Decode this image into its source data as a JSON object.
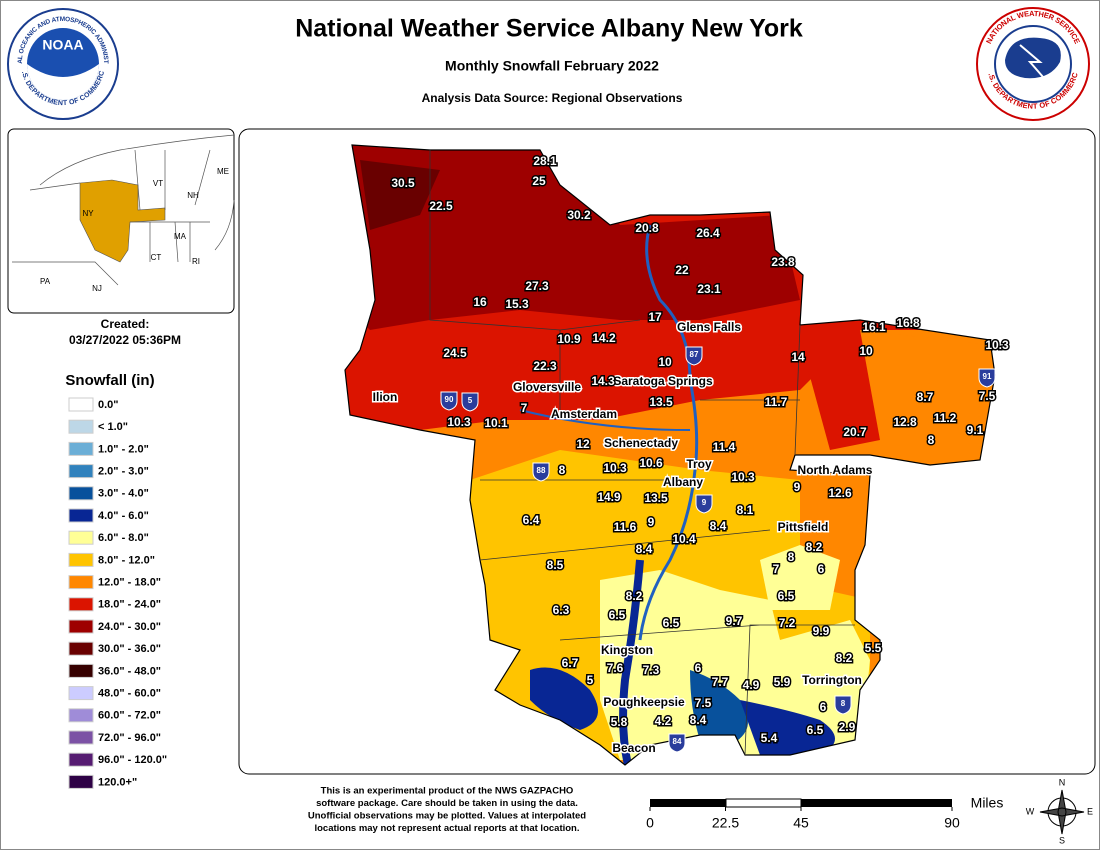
{
  "header": {
    "title": "National Weather Service Albany New York",
    "subtitle": "Monthly Snowfall February 2022",
    "source": "Analysis Data Source: Regional Observations"
  },
  "logos": {
    "noaa": "NOAA",
    "noaa_ring_top": "NATIONAL OCEANIC AND ATMOSPHERIC ADMINISTRATION",
    "noaa_ring_bottom": "U.S. DEPARTMENT OF COMMERCE",
    "nws_ring_top": "NATIONAL WEATHER SERVICE",
    "nws_ring_bottom": "U.S. DEPARTMENT OF COMMERCE"
  },
  "inset": {
    "states": [
      "ME",
      "VT",
      "NH",
      "NY",
      "MA",
      "CT",
      "RI",
      "PA",
      "NJ"
    ],
    "created_label": "Created:",
    "created": "03/27/2022 05:36PM"
  },
  "legend": {
    "title": "Snowfall (in)",
    "items": [
      {
        "label": "0.0\"",
        "color": "#ffffff"
      },
      {
        "label": "< 1.0\"",
        "color": "#bdd7e7"
      },
      {
        "label": "1.0\" - 2.0\"",
        "color": "#6baed6"
      },
      {
        "label": "2.0\" - 3.0\"",
        "color": "#3182bd"
      },
      {
        "label": "3.0\" - 4.0\"",
        "color": "#08519c"
      },
      {
        "label": "4.0\" - 6.0\"",
        "color": "#082694"
      },
      {
        "label": "6.0\" - 8.0\"",
        "color": "#ffff96"
      },
      {
        "label": "8.0\" - 12.0\"",
        "color": "#ffc400"
      },
      {
        "label": "12.0\" - 18.0\"",
        "color": "#ff8700"
      },
      {
        "label": "18.0\" - 24.0\"",
        "color": "#db1400"
      },
      {
        "label": "24.0\" - 30.0\"",
        "color": "#9e0000"
      },
      {
        "label": "30.0\" - 36.0\"",
        "color": "#690000"
      },
      {
        "label": "36.0\" - 48.0\"",
        "color": "#360000"
      },
      {
        "label": "48.0\" - 60.0\"",
        "color": "#ccccff"
      },
      {
        "label": "60.0\" - 72.0\"",
        "color": "#9f8cd8"
      },
      {
        "label": "72.0\" - 96.0\"",
        "color": "#7c52a5"
      },
      {
        "label": "96.0\" - 120.0\"",
        "color": "#561c72"
      },
      {
        "label": "120.0+\"",
        "color": "#2e0145"
      }
    ]
  },
  "observations": [
    30.5,
    28.1,
    25,
    22.5,
    30.2,
    20.8,
    26.4,
    22,
    23.8,
    27.3,
    16,
    15.3,
    23.1,
    17,
    16.1,
    16.8,
    10.3,
    24.5,
    10.9,
    14.2,
    22.3,
    10,
    14,
    10,
    14.3,
    7.5,
    8.7,
    13.5,
    11.7,
    7,
    10.3,
    10.1,
    11.2,
    12.8,
    20.7,
    8,
    9.1,
    12,
    11.4,
    8,
    10.3,
    10.6,
    10.3,
    9,
    12.6,
    14.9,
    13.5,
    8.1,
    6.4,
    11.6,
    9,
    8.4,
    10.4,
    8.2,
    8.4,
    8,
    8.5,
    7,
    6,
    8.2,
    6.5,
    6.3,
    6.5,
    6.5,
    9.7,
    7.2,
    9.9,
    5.5,
    8.2,
    6.7,
    7.6,
    7.3,
    6,
    5,
    7.7,
    4.9,
    5.9,
    7.5,
    5.8,
    4.2,
    8.4,
    6,
    2.9,
    6.5,
    5.4
  ],
  "cities": [
    "Glens Falls",
    "Saratoga Springs",
    "Gloversville",
    "Amsterdam",
    "Ilion",
    "Schenectady",
    "Troy",
    "Albany",
    "North Adams",
    "Pittsfield",
    "Kingston",
    "Poughkeepsie",
    "Beacon",
    "Torrington"
  ],
  "highways": [
    "90",
    "5",
    "87",
    "88",
    "9",
    "91",
    "8",
    "84"
  ],
  "disclaimer": [
    "This is an experimental product of the NWS GAZPACHO",
    "software package. Care should be taken in using the data.",
    "Unofficial observations may be plotted. Values at interpolated",
    "locations may not represent actual reports at that location."
  ],
  "scale": {
    "ticks": [
      0,
      22.5,
      45,
      90
    ],
    "unit": "Miles"
  },
  "compass": [
    "N",
    "E",
    "S",
    "W"
  ]
}
